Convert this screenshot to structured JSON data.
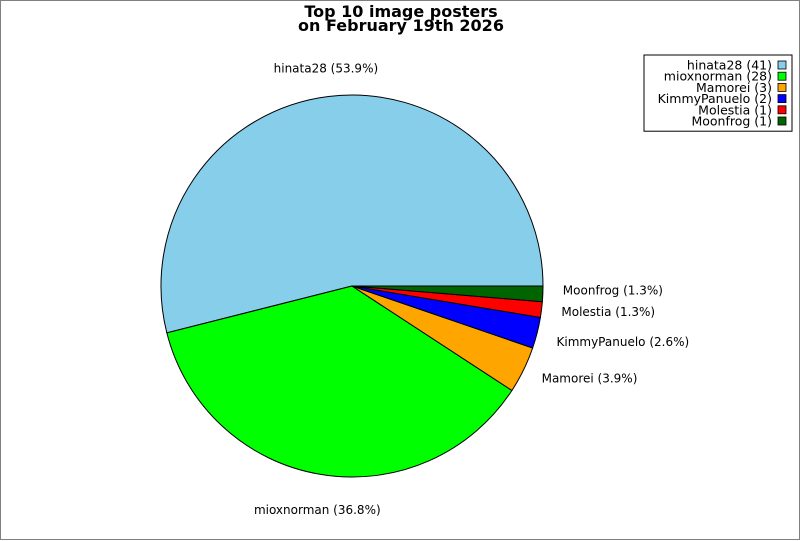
{
  "chart_data": {
    "type": "pie",
    "title_lines": [
      "Top 10 image posters",
      "on February 19th 2026"
    ],
    "slices": [
      {
        "name": "hinata28",
        "value": 41,
        "percent": 53.9,
        "color": "#87CEEB",
        "label": "hinata28 (53.9%)",
        "legend": "hinata28 (41)"
      },
      {
        "name": "mioxnorman",
        "value": 28,
        "percent": 36.8,
        "color": "#00FF00",
        "label": "mioxnorman (36.8%)",
        "legend": "mioxnorman (28)"
      },
      {
        "name": "Mamorei",
        "value": 3,
        "percent": 3.9,
        "color": "#FFA500",
        "label": "Mamorei (3.9%)",
        "legend": "Mamorei (3)"
      },
      {
        "name": "KimmyPanuelo",
        "value": 2,
        "percent": 2.6,
        "color": "#0000FF",
        "label": "KimmyPanuelo (2.6%)",
        "legend": "KimmyPanuelo (2)"
      },
      {
        "name": "Molestia",
        "value": 1,
        "percent": 1.3,
        "color": "#FF0000",
        "label": "Molestia (1.3%)",
        "legend": "Molestia (1)"
      },
      {
        "name": "Moonfrog",
        "value": 1,
        "percent": 1.3,
        "color": "#006400",
        "label": "Moonfrog (1.3%)",
        "legend": "Moonfrog (1)"
      }
    ],
    "legend_position": "top-right"
  }
}
